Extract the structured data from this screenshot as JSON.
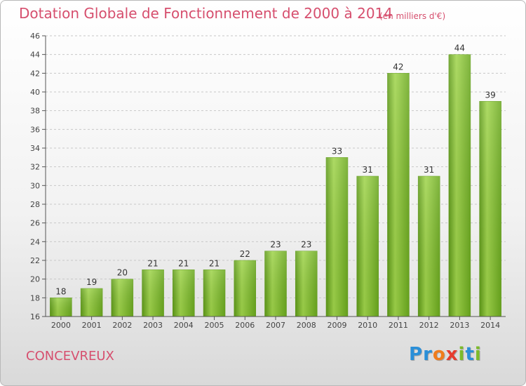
{
  "chart_data": {
    "type": "bar",
    "title": "Dotation Globale de Fonctionnement de 2000 à 2014",
    "subtitle": "(en milliers d'€)",
    "categories": [
      "2000",
      "2001",
      "2002",
      "2003",
      "2004",
      "2005",
      "2006",
      "2007",
      "2008",
      "2009",
      "2010",
      "2011",
      "2012",
      "2013",
      "2014"
    ],
    "values": [
      18,
      19,
      20,
      21,
      21,
      21,
      22,
      23,
      23,
      33,
      31,
      42,
      31,
      44,
      39
    ],
    "xlabel": "",
    "ylabel": "",
    "ylim": [
      16,
      46
    ],
    "yticks": [
      16,
      18,
      20,
      22,
      24,
      26,
      28,
      30,
      32,
      34,
      36,
      38,
      40,
      42,
      44,
      46
    ],
    "grid": true,
    "bar_color": "#7cbb2a"
  },
  "commune": "CONCEVREUX",
  "logo": {
    "letters": [
      "P",
      "r",
      "o",
      "x",
      "i",
      "t",
      "i"
    ],
    "colors": [
      "#2a8fd8",
      "#2a8fd8",
      "#f07c1c",
      "#e63b2e",
      "#7cbb2a",
      "#2a8fd8",
      "#7cbb2a"
    ]
  }
}
